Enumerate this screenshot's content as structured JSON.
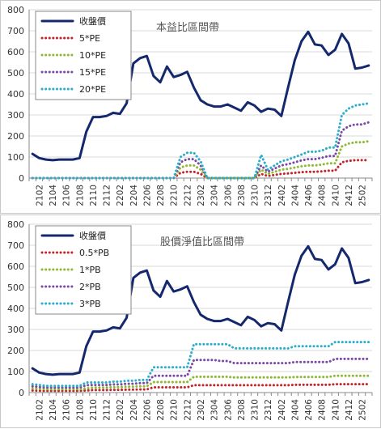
{
  "chart_data": [
    {
      "type": "line",
      "title": "本益比區間帶",
      "x": [
        "2101",
        "2102",
        "2103",
        "2104",
        "2105",
        "2106",
        "2107",
        "2108",
        "2109",
        "2110",
        "2111",
        "2112",
        "2201",
        "2202",
        "2203",
        "2204",
        "2205",
        "2206",
        "2207",
        "2208",
        "2209",
        "2210",
        "2211",
        "2212",
        "2301",
        "2302",
        "2303",
        "2304",
        "2305",
        "2306",
        "2307",
        "2308",
        "2309",
        "2310",
        "2311",
        "2312",
        "2401",
        "2402",
        "2403",
        "2404",
        "2405",
        "2406",
        "2407",
        "2408",
        "2409",
        "2410",
        "2411",
        "2412",
        "2501",
        "2502",
        "2503"
      ],
      "tick_labels": [
        "2102",
        "2104",
        "2106",
        "2108",
        "2110",
        "2112",
        "2202",
        "2204",
        "2206",
        "2208",
        "2210",
        "2212",
        "2302",
        "2304",
        "2306",
        "2308",
        "2310",
        "2312",
        "2402",
        "2404",
        "2406",
        "2408",
        "2410",
        "2412",
        "2502"
      ],
      "ylim": [
        0,
        800
      ],
      "yticks": [
        0,
        100,
        200,
        300,
        400,
        500,
        600,
        700,
        800
      ],
      "legend_position": "top-left",
      "grid": "horizontal",
      "series": [
        {
          "name": "收盤價",
          "color": "#14286e",
          "style": "solid",
          "values": [
            115,
            95,
            88,
            85,
            88,
            88,
            88,
            95,
            220,
            290,
            290,
            295,
            310,
            305,
            355,
            545,
            570,
            580,
            485,
            455,
            530,
            480,
            490,
            505,
            430,
            370,
            350,
            340,
            340,
            350,
            335,
            320,
            360,
            345,
            315,
            330,
            325,
            295,
            430,
            560,
            650,
            695,
            635,
            630,
            585,
            610,
            685,
            640,
            520,
            525,
            535
          ]
        },
        {
          "name": "5*PE",
          "color": "#c0272d",
          "style": "dotted",
          "values": [
            0,
            0,
            0,
            0,
            0,
            0,
            0,
            0,
            0,
            0,
            0,
            0,
            0,
            0,
            0,
            0,
            0,
            0,
            0,
            0,
            0,
            0,
            25,
            30,
            30,
            20,
            0,
            0,
            0,
            0,
            0,
            0,
            0,
            0,
            20,
            10,
            15,
            20,
            22,
            25,
            28,
            30,
            30,
            32,
            35,
            35,
            75,
            82,
            85,
            85,
            85
          ]
        },
        {
          "name": "10*PE",
          "color": "#8fb935",
          "style": "dotted",
          "values": [
            0,
            0,
            0,
            0,
            0,
            0,
            0,
            0,
            0,
            0,
            0,
            0,
            0,
            0,
            0,
            0,
            0,
            0,
            0,
            0,
            0,
            0,
            50,
            60,
            60,
            40,
            0,
            0,
            0,
            0,
            0,
            0,
            0,
            0,
            40,
            20,
            30,
            40,
            44,
            50,
            56,
            60,
            60,
            64,
            70,
            70,
            150,
            164,
            170,
            170,
            175
          ]
        },
        {
          "name": "15*PE",
          "color": "#7a4aa5",
          "style": "dotted",
          "values": [
            0,
            0,
            0,
            0,
            0,
            0,
            0,
            0,
            0,
            0,
            0,
            0,
            0,
            0,
            0,
            0,
            0,
            0,
            0,
            0,
            0,
            0,
            75,
            90,
            90,
            60,
            0,
            0,
            0,
            0,
            0,
            0,
            0,
            0,
            60,
            30,
            45,
            60,
            66,
            75,
            84,
            90,
            90,
            96,
            105,
            105,
            225,
            246,
            255,
            255,
            265
          ]
        },
        {
          "name": "20*PE",
          "color": "#2aaecb",
          "style": "dotted",
          "values": [
            0,
            0,
            0,
            0,
            0,
            0,
            0,
            0,
            0,
            0,
            0,
            0,
            0,
            0,
            0,
            0,
            0,
            0,
            0,
            0,
            0,
            0,
            100,
            120,
            120,
            80,
            0,
            0,
            0,
            0,
            0,
            0,
            0,
            0,
            110,
            40,
            60,
            80,
            88,
            100,
            112,
            125,
            125,
            130,
            145,
            145,
            300,
            330,
            345,
            350,
            355
          ]
        }
      ]
    },
    {
      "type": "line",
      "title": "股價淨值比區間帶",
      "x": [
        "2101",
        "2102",
        "2103",
        "2104",
        "2105",
        "2106",
        "2107",
        "2108",
        "2109",
        "2110",
        "2111",
        "2112",
        "2201",
        "2202",
        "2203",
        "2204",
        "2205",
        "2206",
        "2207",
        "2208",
        "2209",
        "2210",
        "2211",
        "2212",
        "2301",
        "2302",
        "2303",
        "2304",
        "2305",
        "2306",
        "2307",
        "2308",
        "2309",
        "2310",
        "2311",
        "2312",
        "2401",
        "2402",
        "2403",
        "2404",
        "2405",
        "2406",
        "2407",
        "2408",
        "2409",
        "2410",
        "2411",
        "2412",
        "2501",
        "2502",
        "2503"
      ],
      "tick_labels": [
        "2102",
        "2104",
        "2106",
        "2108",
        "2110",
        "2112",
        "2202",
        "2204",
        "2206",
        "2208",
        "2210",
        "2212",
        "2302",
        "2304",
        "2306",
        "2308",
        "2310",
        "2312",
        "2402",
        "2404",
        "2406",
        "2408",
        "2410",
        "2412",
        "2502"
      ],
      "ylim": [
        0,
        800
      ],
      "yticks": [
        0,
        100,
        200,
        300,
        400,
        500,
        600,
        700,
        800
      ],
      "legend_position": "top-left",
      "grid": "horizontal",
      "series": [
        {
          "name": "收盤價",
          "color": "#14286e",
          "style": "solid",
          "values": [
            115,
            95,
            88,
            85,
            88,
            88,
            88,
            95,
            220,
            290,
            290,
            295,
            310,
            305,
            355,
            545,
            570,
            580,
            485,
            455,
            530,
            480,
            490,
            505,
            430,
            370,
            350,
            340,
            340,
            350,
            335,
            320,
            360,
            345,
            315,
            330,
            325,
            295,
            430,
            560,
            650,
            695,
            635,
            630,
            585,
            610,
            685,
            640,
            520,
            525,
            535
          ]
        },
        {
          "name": "0.5*PB",
          "color": "#c0272d",
          "style": "dotted",
          "values": [
            10,
            9,
            8,
            8,
            8,
            8,
            8,
            8,
            10,
            12,
            12,
            12,
            13,
            13,
            14,
            14,
            15,
            15,
            25,
            25,
            25,
            25,
            25,
            25,
            35,
            35,
            35,
            35,
            35,
            35,
            35,
            35,
            35,
            35,
            35,
            35,
            35,
            35,
            35,
            37,
            37,
            37,
            37,
            37,
            37,
            40,
            40,
            40,
            40,
            40,
            40
          ]
        },
        {
          "name": "1*PB",
          "color": "#8fb935",
          "style": "dotted",
          "values": [
            20,
            18,
            16,
            16,
            16,
            16,
            16,
            16,
            20,
            24,
            24,
            24,
            26,
            26,
            28,
            28,
            30,
            30,
            50,
            50,
            50,
            50,
            50,
            50,
            75,
            75,
            75,
            75,
            75,
            75,
            72,
            72,
            72,
            72,
            72,
            72,
            72,
            72,
            72,
            74,
            74,
            74,
            74,
            74,
            74,
            80,
            80,
            80,
            80,
            80,
            80
          ]
        },
        {
          "name": "2*PB",
          "color": "#7a4aa5",
          "style": "dotted",
          "values": [
            30,
            27,
            24,
            24,
            24,
            24,
            24,
            24,
            35,
            36,
            36,
            36,
            39,
            39,
            42,
            42,
            45,
            45,
            80,
            80,
            80,
            80,
            80,
            80,
            155,
            155,
            155,
            155,
            150,
            150,
            140,
            140,
            140,
            140,
            140,
            140,
            140,
            140,
            140,
            145,
            145,
            145,
            145,
            145,
            145,
            160,
            160,
            160,
            160,
            160,
            160
          ]
        },
        {
          "name": "3*PB",
          "color": "#2aaecb",
          "style": "dotted",
          "values": [
            40,
            36,
            32,
            32,
            32,
            32,
            32,
            32,
            48,
            48,
            48,
            48,
            52,
            52,
            56,
            56,
            60,
            60,
            120,
            120,
            120,
            120,
            120,
            120,
            230,
            230,
            230,
            230,
            230,
            230,
            210,
            210,
            210,
            210,
            210,
            210,
            210,
            210,
            210,
            220,
            220,
            220,
            220,
            220,
            220,
            240,
            240,
            240,
            240,
            240,
            240
          ]
        }
      ]
    }
  ]
}
